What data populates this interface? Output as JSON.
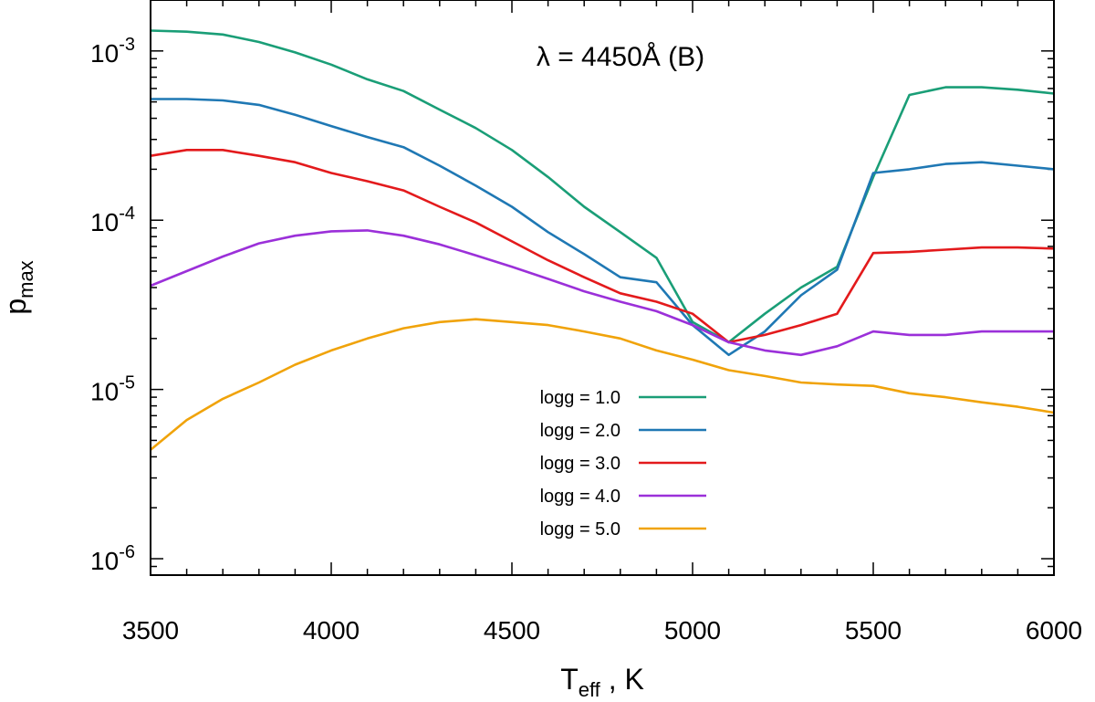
{
  "chart_data": {
    "type": "line",
    "annotation": "λ = 4450Å (B)",
    "xlabel": {
      "main": "T",
      "sub": "eff",
      "suffix": " , K"
    },
    "ylabel": {
      "main": "p",
      "sub": "max"
    },
    "xlim": [
      3500,
      6000
    ],
    "ylim": [
      8e-07,
      0.002
    ],
    "y_scale": "log",
    "x_ticks": [
      3500,
      4000,
      4500,
      5000,
      5500,
      6000
    ],
    "x_tick_labels": [
      "3500",
      "4000",
      "4500",
      "5000",
      "5500",
      "6000"
    ],
    "y_major_ticks": [
      {
        "value": 0.001,
        "base": "10",
        "exp": "-3"
      },
      {
        "value": 0.0001,
        "base": "10",
        "exp": "-4"
      },
      {
        "value": 1e-05,
        "base": "10",
        "exp": "-5"
      },
      {
        "value": 1e-06,
        "base": "10",
        "exp": "-6"
      }
    ],
    "legend_position": "bottom-center",
    "x": [
      3500,
      3600,
      3700,
      3800,
      3900,
      4000,
      4100,
      4200,
      4300,
      4400,
      4500,
      4600,
      4700,
      4800,
      4900,
      5000,
      5100,
      5200,
      5300,
      5400,
      5500,
      5600,
      5700,
      5800,
      5900,
      6000
    ],
    "series": [
      {
        "name": "logg = 1.0",
        "color": "#1a9e77",
        "values": [
          0.00132,
          0.0013,
          0.00125,
          0.00113,
          0.00098,
          0.00083,
          0.00068,
          0.00058,
          0.00045,
          0.00035,
          0.00026,
          0.00018,
          0.00012,
          8.5e-05,
          6e-05,
          2.5e-05,
          1.9e-05,
          2.8e-05,
          4e-05,
          5.3e-05,
          0.00018,
          0.00055,
          0.00061,
          0.00061,
          0.00059,
          0.00056
        ]
      },
      {
        "name": "logg = 2.0",
        "color": "#1f78b4",
        "values": [
          0.00052,
          0.00052,
          0.00051,
          0.00048,
          0.00042,
          0.00036,
          0.00031,
          0.00027,
          0.00021,
          0.00016,
          0.00012,
          8.5e-05,
          6.3e-05,
          4.6e-05,
          4.3e-05,
          2.4e-05,
          1.6e-05,
          2.2e-05,
          3.6e-05,
          5.1e-05,
          0.00019,
          0.0002,
          0.000215,
          0.00022,
          0.00021,
          0.0002
        ]
      },
      {
        "name": "logg = 3.0",
        "color": "#e31a1c",
        "values": [
          0.00024,
          0.00026,
          0.00026,
          0.00024,
          0.00022,
          0.00019,
          0.00017,
          0.00015,
          0.00012,
          9.7e-05,
          7.5e-05,
          5.8e-05,
          4.6e-05,
          3.7e-05,
          3.3e-05,
          2.8e-05,
          1.9e-05,
          2.1e-05,
          2.4e-05,
          2.8e-05,
          6.4e-05,
          6.5e-05,
          6.7e-05,
          6.9e-05,
          6.9e-05,
          6.8e-05
        ]
      },
      {
        "name": "logg = 4.0",
        "color": "#9b30d9",
        "values": [
          4.1e-05,
          5e-05,
          6.1e-05,
          7.3e-05,
          8.1e-05,
          8.6e-05,
          8.7e-05,
          8.1e-05,
          7.2e-05,
          6.2e-05,
          5.3e-05,
          4.5e-05,
          3.8e-05,
          3.3e-05,
          2.9e-05,
          2.4e-05,
          1.9e-05,
          1.7e-05,
          1.6e-05,
          1.8e-05,
          2.2e-05,
          2.1e-05,
          2.1e-05,
          2.2e-05,
          2.2e-05,
          2.2e-05
        ]
      },
      {
        "name": "logg = 5.0",
        "color": "#f0a30a",
        "values": [
          4.4e-06,
          6.6e-06,
          8.8e-06,
          1.1e-05,
          1.4e-05,
          1.7e-05,
          2e-05,
          2.3e-05,
          2.5e-05,
          2.6e-05,
          2.5e-05,
          2.4e-05,
          2.2e-05,
          2e-05,
          1.7e-05,
          1.5e-05,
          1.3e-05,
          1.2e-05,
          1.1e-05,
          1.07e-05,
          1.05e-05,
          9.5e-06,
          9e-06,
          8.4e-06,
          7.9e-06,
          7.3e-06
        ]
      }
    ]
  }
}
